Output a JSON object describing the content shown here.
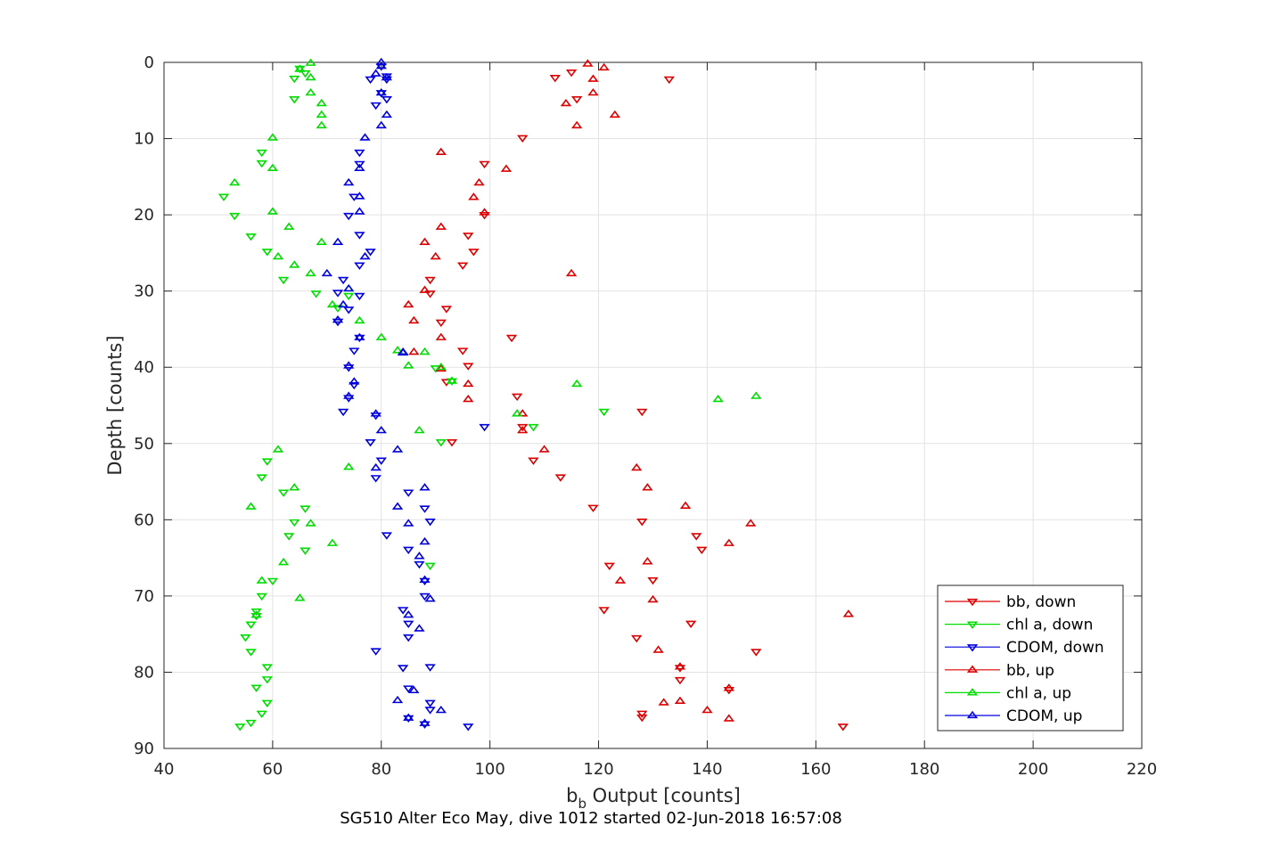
{
  "chart_data": {
    "type": "scatter",
    "title": "SG510 Alter Eco May, dive 1012 started 02-Jun-2018 16:57:08",
    "xlabel_main": "b",
    "xlabel_sub": "b",
    "xlabel_rest": " Output [counts]",
    "ylabel": "Depth [counts]",
    "xlim": [
      40,
      220
    ],
    "ylim": [
      0,
      90
    ],
    "y_reversed": true,
    "xticks": [
      40,
      60,
      80,
      100,
      120,
      140,
      160,
      180,
      200,
      220
    ],
    "yticks": [
      0,
      10,
      20,
      30,
      40,
      50,
      60,
      70,
      80,
      90
    ],
    "grid": true,
    "legend_position": "bottom-right",
    "series": [
      {
        "name": "bb, down",
        "color": "#dd0000",
        "marker": "triangle-down",
        "points": [
          [
            112,
            2
          ],
          [
            115,
            1.3
          ],
          [
            133,
            2.2
          ],
          [
            116,
            4.8
          ],
          [
            106,
            9.9
          ],
          [
            99,
            13.3
          ],
          [
            99,
            20
          ],
          [
            96,
            22.7
          ],
          [
            97,
            24.8
          ],
          [
            95,
            26.6
          ],
          [
            89,
            28.5
          ],
          [
            89,
            30.3
          ],
          [
            92,
            32.3
          ],
          [
            91,
            34.1
          ],
          [
            104,
            36.1
          ],
          [
            95,
            37.8
          ],
          [
            96,
            39.8
          ],
          [
            92,
            41.9
          ],
          [
            105,
            43.8
          ],
          [
            128,
            45.8
          ],
          [
            106,
            47.8
          ],
          [
            93,
            49.8
          ],
          [
            108,
            52.2
          ],
          [
            113,
            54.4
          ],
          [
            119,
            58.4
          ],
          [
            128,
            60.2
          ],
          [
            138,
            62.1
          ],
          [
            139,
            63.9
          ],
          [
            122,
            66
          ],
          [
            130,
            67.9
          ],
          [
            121,
            71.8
          ],
          [
            137,
            73.6
          ],
          [
            127,
            75.5
          ],
          [
            149,
            77.3
          ],
          [
            135,
            79.4
          ],
          [
            135,
            81
          ],
          [
            144,
            82.3
          ],
          [
            128,
            85.4
          ],
          [
            128,
            85.9
          ],
          [
            165,
            87.1
          ]
        ]
      },
      {
        "name": "chl a, down",
        "color": "#00dd00",
        "marker": "triangle-down",
        "points": [
          [
            65,
            0.8
          ],
          [
            64,
            2.1
          ],
          [
            66,
            1.4
          ],
          [
            64,
            4.8
          ],
          [
            58,
            11.8
          ],
          [
            58,
            13.2
          ],
          [
            51,
            17.6
          ],
          [
            53,
            20.1
          ],
          [
            56,
            22.8
          ],
          [
            59,
            24.8
          ],
          [
            62,
            28.5
          ],
          [
            68,
            30.3
          ],
          [
            74,
            30.6
          ],
          [
            72,
            32.2
          ],
          [
            90,
            40.1
          ],
          [
            93,
            41.8
          ],
          [
            121,
            45.8
          ],
          [
            108,
            47.8
          ],
          [
            91,
            49.8
          ],
          [
            59,
            52.3
          ],
          [
            58,
            54.4
          ],
          [
            62,
            56.4
          ],
          [
            66,
            58.5
          ],
          [
            64,
            60.3
          ],
          [
            63,
            62.1
          ],
          [
            66,
            64
          ],
          [
            89,
            66
          ],
          [
            60,
            68
          ],
          [
            58,
            70
          ],
          [
            57,
            72
          ],
          [
            57,
            72.6
          ],
          [
            56,
            73.7
          ],
          [
            55,
            75.4
          ],
          [
            56,
            77.3
          ],
          [
            59,
            79.3
          ],
          [
            59,
            80.9
          ],
          [
            57,
            82
          ],
          [
            59,
            84
          ],
          [
            58,
            85.4
          ],
          [
            56,
            86.6
          ],
          [
            54,
            87.1
          ]
        ]
      },
      {
        "name": "CDOM, down",
        "color": "#0000dd",
        "marker": "triangle-down",
        "points": [
          [
            80,
            0.5
          ],
          [
            81,
            1.8
          ],
          [
            81,
            2.2
          ],
          [
            78,
            2.2
          ],
          [
            80,
            4
          ],
          [
            81,
            4.8
          ],
          [
            79,
            5.6
          ],
          [
            76,
            11.8
          ],
          [
            76,
            13.3
          ],
          [
            75,
            17.6
          ],
          [
            74,
            20.1
          ],
          [
            76,
            22.6
          ],
          [
            78,
            24.8
          ],
          [
            76,
            26.6
          ],
          [
            73,
            28.5
          ],
          [
            72,
            30.2
          ],
          [
            76,
            30.6
          ],
          [
            74,
            32.4
          ],
          [
            72,
            34
          ],
          [
            72,
            34
          ],
          [
            76,
            36.1
          ],
          [
            75,
            37.8
          ],
          [
            74,
            40
          ],
          [
            75,
            42.3
          ],
          [
            74,
            44
          ],
          [
            73,
            45.8
          ],
          [
            79,
            46.3
          ],
          [
            99,
            47.8
          ],
          [
            78,
            49.8
          ],
          [
            80,
            52.2
          ],
          [
            79,
            54.5
          ],
          [
            85,
            56.4
          ],
          [
            88,
            58.5
          ],
          [
            89,
            60.2
          ],
          [
            81,
            62
          ],
          [
            85,
            63.9
          ],
          [
            87,
            65.8
          ],
          [
            88,
            68
          ],
          [
            88,
            70
          ],
          [
            84,
            71.8
          ],
          [
            85,
            73.6
          ],
          [
            85,
            75.4
          ],
          [
            79,
            77.2
          ],
          [
            84,
            79.4
          ],
          [
            89,
            79.3
          ],
          [
            85,
            82.1
          ],
          [
            89,
            84
          ],
          [
            89,
            84.9
          ],
          [
            85,
            86
          ],
          [
            88,
            86.8
          ],
          [
            96,
            87.1
          ]
        ]
      },
      {
        "name": "bb, up",
        "color": "#dd0000",
        "marker": "triangle-up",
        "points": [
          [
            118,
            0.2
          ],
          [
            121,
            0.7
          ],
          [
            119,
            2.2
          ],
          [
            119,
            4
          ],
          [
            114,
            5.4
          ],
          [
            123,
            6.9
          ],
          [
            116,
            8.3
          ],
          [
            91,
            11.8
          ],
          [
            103,
            14
          ],
          [
            98,
            15.8
          ],
          [
            97,
            17.7
          ],
          [
            99,
            19.7
          ],
          [
            91,
            21.6
          ],
          [
            88,
            23.6
          ],
          [
            90,
            25.5
          ],
          [
            115,
            27.7
          ],
          [
            88,
            29.9
          ],
          [
            85,
            31.8
          ],
          [
            86,
            33.9
          ],
          [
            91,
            36.1
          ],
          [
            86,
            38
          ],
          [
            91,
            40.2
          ],
          [
            96,
            42.2
          ],
          [
            96,
            44.2
          ],
          [
            106,
            46.1
          ],
          [
            106,
            48.3
          ],
          [
            110,
            50.8
          ],
          [
            127,
            53.2
          ],
          [
            129,
            55.8
          ],
          [
            136,
            58.2
          ],
          [
            148,
            60.5
          ],
          [
            144,
            63.1
          ],
          [
            129,
            65.5
          ],
          [
            124,
            68
          ],
          [
            130,
            70.5
          ],
          [
            166,
            72.4
          ],
          [
            131,
            77.1
          ],
          [
            135,
            79.3
          ],
          [
            144,
            82.1
          ],
          [
            135,
            83.8
          ],
          [
            132,
            84
          ],
          [
            140,
            85
          ],
          [
            144,
            86.1
          ]
        ]
      },
      {
        "name": "chl a, up",
        "color": "#00dd00",
        "marker": "triangle-up",
        "points": [
          [
            67,
            0.1
          ],
          [
            65,
            0.9
          ],
          [
            67,
            2
          ],
          [
            67,
            4
          ],
          [
            69,
            5.4
          ],
          [
            69,
            6.9
          ],
          [
            69,
            8.3
          ],
          [
            60,
            9.9
          ],
          [
            60,
            13.9
          ],
          [
            53,
            15.8
          ],
          [
            60,
            19.6
          ],
          [
            63,
            21.6
          ],
          [
            69,
            23.6
          ],
          [
            61,
            25.5
          ],
          [
            64,
            26.6
          ],
          [
            67,
            27.7
          ],
          [
            74,
            29.7
          ],
          [
            71,
            31.8
          ],
          [
            76,
            33.9
          ],
          [
            80,
            36.1
          ],
          [
            83,
            37.8
          ],
          [
            88,
            38
          ],
          [
            85,
            39.8
          ],
          [
            91,
            40
          ],
          [
            116,
            42.2
          ],
          [
            93,
            41.8
          ],
          [
            149,
            43.8
          ],
          [
            142,
            44.2
          ],
          [
            105,
            46.1
          ],
          [
            87,
            48.3
          ],
          [
            61,
            50.8
          ],
          [
            74,
            53.1
          ],
          [
            64,
            55.8
          ],
          [
            56,
            58.3
          ],
          [
            67,
            60.5
          ],
          [
            71,
            63.1
          ],
          [
            62,
            65.6
          ],
          [
            58,
            68
          ],
          [
            65,
            70.3
          ],
          [
            57,
            72.5
          ]
        ]
      },
      {
        "name": "CDOM, up",
        "color": "#0000dd",
        "marker": "triangle-up",
        "points": [
          [
            80,
            0
          ],
          [
            80,
            0.5
          ],
          [
            79,
            1.5
          ],
          [
            81,
            2
          ],
          [
            80,
            4
          ],
          [
            81,
            6.9
          ],
          [
            80,
            8.3
          ],
          [
            77,
            9.9
          ],
          [
            76,
            13.9
          ],
          [
            74,
            15.8
          ],
          [
            76,
            17.6
          ],
          [
            76,
            19.6
          ],
          [
            72,
            23.6
          ],
          [
            77,
            25.5
          ],
          [
            70,
            27.7
          ],
          [
            74,
            29.7
          ],
          [
            73,
            31.8
          ],
          [
            72,
            33.8
          ],
          [
            76,
            36.1
          ],
          [
            84,
            38
          ],
          [
            84,
            38.1
          ],
          [
            74,
            39.8
          ],
          [
            75,
            41.9
          ],
          [
            74,
            43.8
          ],
          [
            79,
            46.1
          ],
          [
            80,
            48.3
          ],
          [
            83,
            50.8
          ],
          [
            79,
            53.2
          ],
          [
            88,
            55.8
          ],
          [
            83,
            58.3
          ],
          [
            85,
            60.5
          ],
          [
            88,
            62.9
          ],
          [
            87,
            64.8
          ],
          [
            88,
            67.9
          ],
          [
            89,
            70.4
          ],
          [
            85,
            72.5
          ],
          [
            87,
            74.3
          ],
          [
            91,
            85
          ],
          [
            85,
            86
          ],
          [
            88,
            86.7
          ],
          [
            83,
            83.7
          ],
          [
            86,
            82.4
          ]
        ]
      }
    ]
  }
}
